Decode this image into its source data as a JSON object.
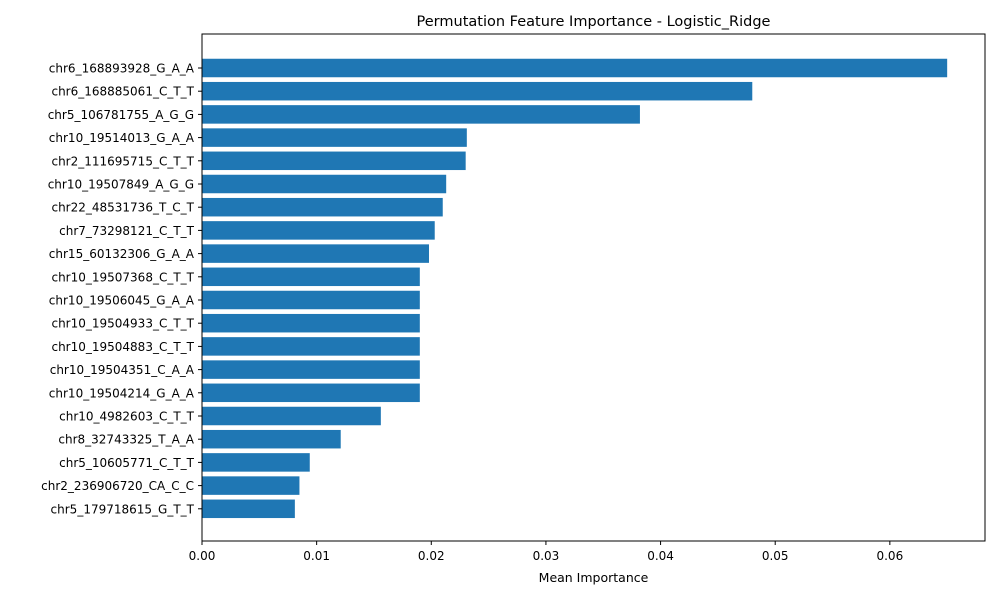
{
  "chart_data": {
    "type": "bar",
    "orientation": "horizontal",
    "title": "Permutation Feature Importance - Logistic_Ridge",
    "xlabel": "Mean Importance",
    "ylabel": "",
    "xlim": [
      0,
      0.0683
    ],
    "xticks": [
      0.0,
      0.01,
      0.02,
      0.03,
      0.04,
      0.05,
      0.06
    ],
    "xtick_labels": [
      "0.00",
      "0.01",
      "0.02",
      "0.03",
      "0.04",
      "0.05",
      "0.06"
    ],
    "bar_color": "#1f77b4",
    "grid": false,
    "categories": [
      "chr6_168893928_G_A_A",
      "chr6_168885061_C_T_T",
      "chr5_106781755_A_G_G",
      "chr10_19514013_G_A_A",
      "chr2_111695715_C_T_T",
      "chr10_19507849_A_G_G",
      "chr22_48531736_T_C_T",
      "chr7_73298121_C_T_T",
      "chr15_60132306_G_A_A",
      "chr10_19507368_C_T_T",
      "chr10_19506045_G_A_A",
      "chr10_19504933_C_T_T",
      "chr10_19504883_C_T_T",
      "chr10_19504351_C_A_A",
      "chr10_19504214_G_A_A",
      "chr10_4982603_C_T_T",
      "chr8_32743325_T_A_A",
      "chr5_10605771_C_T_T",
      "chr2_236906720_CA_C_C",
      "chr5_179718615_G_T_T"
    ],
    "values": [
      0.065,
      0.048,
      0.0382,
      0.0231,
      0.023,
      0.0213,
      0.021,
      0.0203,
      0.0198,
      0.019,
      0.019,
      0.019,
      0.019,
      0.019,
      0.019,
      0.0156,
      0.0121,
      0.0094,
      0.0085,
      0.0081
    ]
  }
}
